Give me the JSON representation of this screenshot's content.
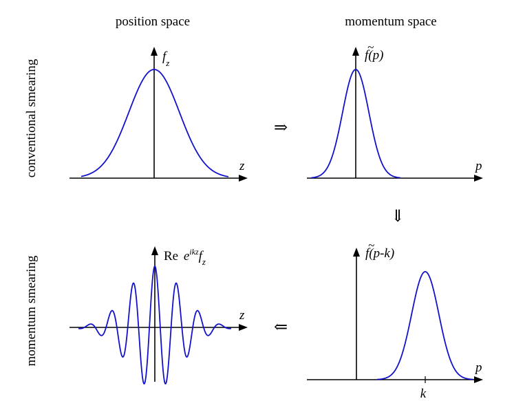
{
  "headers": {
    "left": "position space",
    "right": "momentum space"
  },
  "row_labels": {
    "top": "conventional smearing",
    "bottom": "momentum smearing"
  },
  "panels": {
    "top_left": {
      "y_label_main": "f",
      "y_label_sub": "z",
      "x_label": "z"
    },
    "top_right": {
      "y_label_tilde": "~",
      "y_label_main": "f",
      "y_label_rest": "(p)",
      "x_label": "p"
    },
    "bottom_left": {
      "y_label_prefix": "Re ",
      "y_label_e": "e",
      "y_label_exp": "ikz",
      "y_label_main": "f",
      "y_label_sub": "z",
      "x_label": "z"
    },
    "bottom_right": {
      "y_label_tilde": "~",
      "y_label_main": "f",
      "y_label_rest": "(p-k)",
      "x_label": "p",
      "tick_label": "k"
    }
  },
  "arrows": {
    "top_horizontal": "⇒",
    "right_vertical": "⇓",
    "bottom_horizontal": "⇐"
  },
  "colors": {
    "curve": "#1111cc",
    "axis": "#000000"
  }
}
